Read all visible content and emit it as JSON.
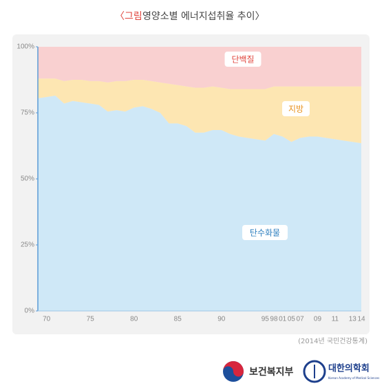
{
  "chart_data": {
    "type": "stacked-area",
    "title_label": "〈그림",
    "title": "영양소별 에너지섭취율 추이〉",
    "categories": [
      null,
      "70",
      null,
      null,
      null,
      null,
      "75",
      null,
      null,
      null,
      null,
      "80",
      null,
      null,
      null,
      null,
      "85",
      null,
      null,
      null,
      null,
      "90",
      null,
      null,
      null,
      null,
      "95",
      "98",
      "01",
      "05",
      "07",
      null,
      "09",
      null,
      "11",
      null,
      "13",
      "14"
    ],
    "series": [
      {
        "name": "탄수화물",
        "color": "#cfe8f7",
        "label_color": "#2f7fbf",
        "values": [
          80.5,
          81,
          81.5,
          78.5,
          79.5,
          79,
          78.5,
          78,
          75.5,
          76,
          75.5,
          77,
          77.5,
          76.5,
          75,
          71,
          71,
          70,
          67.5,
          67.5,
          68.5,
          68.5,
          67,
          66,
          65.5,
          65,
          64.5,
          67,
          66,
          64,
          65.5,
          66,
          66,
          65.5,
          65,
          64.5,
          64,
          63.5
        ]
      },
      {
        "name": "지방",
        "color": "#fde6b2",
        "label_color": "#e8911c",
        "values": [
          7.5,
          7,
          6.5,
          8.5,
          8,
          8.5,
          8.5,
          9,
          11,
          11,
          11.5,
          10.5,
          10,
          10.5,
          11.5,
          15,
          14.5,
          15,
          17,
          17,
          16.5,
          16,
          17,
          18,
          18.5,
          19,
          19.5,
          18,
          19,
          21,
          19.5,
          19,
          19,
          19.5,
          20,
          20.5,
          21,
          21.5
        ]
      },
      {
        "name": "단백질",
        "color": "#f9d0d0",
        "label_color": "#e0443c",
        "values": [
          12,
          12,
          12,
          13,
          12.5,
          12.5,
          13,
          13,
          13.5,
          13,
          13,
          12.5,
          12.5,
          13,
          13.5,
          14,
          14.5,
          15,
          15.5,
          15.5,
          15,
          15.5,
          16,
          16,
          16,
          16,
          16,
          15,
          15,
          15,
          15,
          15,
          15,
          15,
          15,
          15,
          15,
          15
        ]
      }
    ],
    "ylim": [
      0,
      100
    ],
    "yticks": [
      {
        "value": 0,
        "label": "0%"
      },
      {
        "value": 25,
        "label": "25%"
      },
      {
        "value": 50,
        "label": "50%"
      },
      {
        "value": 75,
        "label": "75%"
      },
      {
        "value": 100,
        "label": "100%"
      }
    ],
    "source": "(2014년 국민건강통계)"
  },
  "logos": {
    "ministry": "보건복지부",
    "academy": "대한의학회",
    "academy_en": "Korean Academy of Medical Sciences"
  }
}
